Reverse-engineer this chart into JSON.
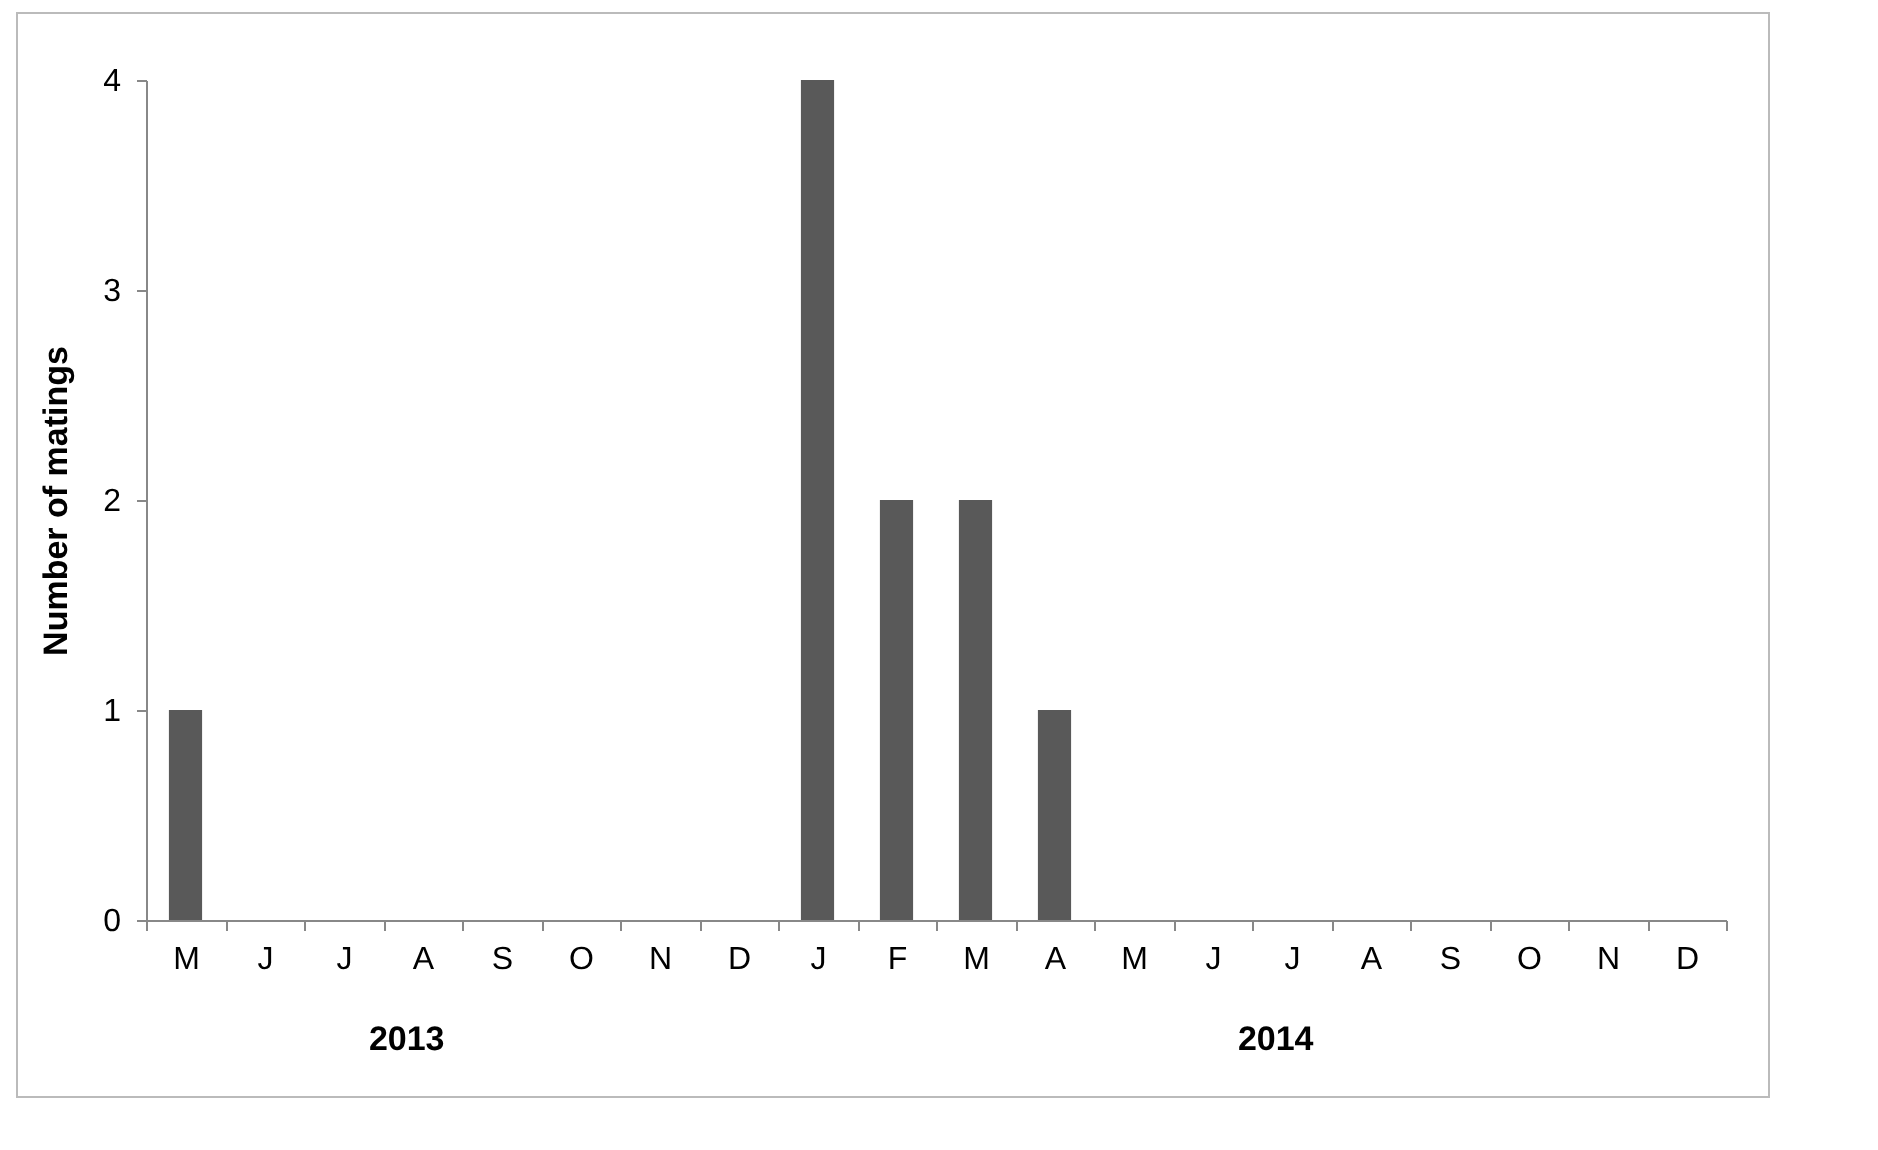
{
  "chart_data": {
    "type": "bar",
    "ylabel": "Number of matings",
    "categories": [
      "M",
      "J",
      "J",
      "A",
      "S",
      "O",
      "N",
      "D",
      "J",
      "F",
      "M",
      "A",
      "M",
      "J",
      "J",
      "A",
      "S",
      "O",
      "N",
      "D"
    ],
    "values": [
      1,
      0,
      0,
      0,
      0,
      0,
      0,
      0,
      4,
      2,
      2,
      1,
      0,
      0,
      0,
      0,
      0,
      0,
      0,
      0
    ],
    "color": "#595959",
    "ylim": [
      0,
      4
    ],
    "yticks": [
      0,
      1,
      2,
      3,
      4
    ],
    "grid": false,
    "annotations": [
      "2013",
      "2014"
    ]
  }
}
